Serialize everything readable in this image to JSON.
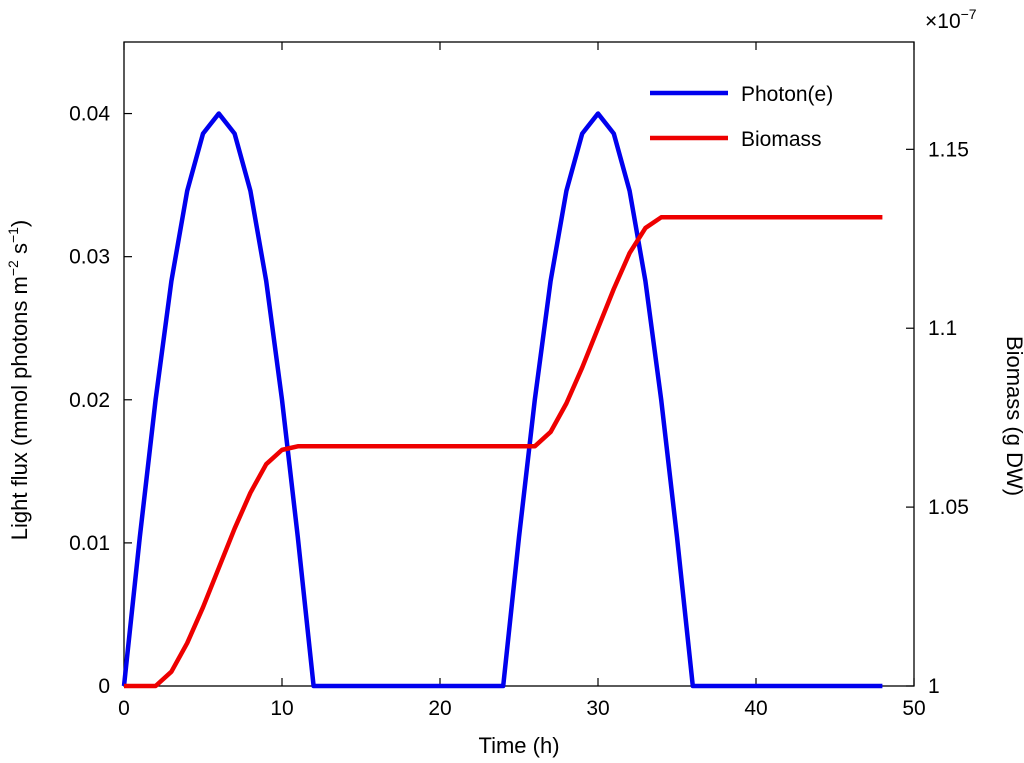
{
  "chart_data": {
    "type": "line",
    "xlabel": "Time (h)",
    "xlim": [
      0,
      50
    ],
    "xticks": [
      "0",
      "10",
      "20",
      "30",
      "40",
      "50"
    ],
    "y_left": {
      "label_main": "Light flux (mmol photons m",
      "label_sup1": "−2",
      "label_mid": " s",
      "label_sup2": "−1",
      "label_end": ")",
      "lim": [
        0,
        0.045
      ],
      "ticks": [
        0,
        0.01,
        0.02,
        0.03,
        0.04
      ],
      "tick_labels": [
        "0",
        "0.01",
        "0.02",
        "0.03",
        "0.04"
      ]
    },
    "y_right": {
      "label": "Biomass (g DW)",
      "lim": [
        1.0,
        1.18
      ],
      "ticks": [
        1.0,
        1.05,
        1.1,
        1.15
      ],
      "tick_labels": [
        "1",
        "1.05",
        "1.1",
        "1.15"
      ],
      "exponent_base": "×10",
      "exponent_power": "−7"
    },
    "series": [
      {
        "name": "Photon(e)",
        "axis": "left",
        "color": "#0000ee",
        "x": [
          0,
          1,
          2,
          3,
          4,
          5,
          6,
          7,
          8,
          9,
          10,
          11,
          12,
          13,
          14,
          15,
          16,
          17,
          18,
          19,
          20,
          21,
          22,
          23,
          24,
          25,
          26,
          27,
          28,
          29,
          30,
          31,
          32,
          33,
          34,
          35,
          36,
          37,
          38,
          39,
          40,
          41,
          42,
          43,
          44,
          45,
          46,
          47,
          48
        ],
        "y": [
          0,
          0.0104,
          0.02,
          0.0283,
          0.0346,
          0.0386,
          0.04,
          0.0386,
          0.0346,
          0.0283,
          0.02,
          0.0104,
          0,
          0,
          0,
          0,
          0,
          0,
          0,
          0,
          0,
          0,
          0,
          0,
          0,
          0.0104,
          0.02,
          0.0283,
          0.0346,
          0.0386,
          0.04,
          0.0386,
          0.0346,
          0.0283,
          0.02,
          0.0104,
          0,
          0,
          0,
          0,
          0,
          0,
          0,
          0,
          0,
          0,
          0,
          0,
          0
        ]
      },
      {
        "name": "Biomass",
        "axis": "right",
        "color": "#ee0000",
        "x": [
          0,
          1,
          2,
          3,
          4,
          5,
          6,
          7,
          8,
          9,
          10,
          11,
          12,
          13,
          14,
          15,
          16,
          17,
          18,
          19,
          20,
          21,
          22,
          23,
          24,
          25,
          26,
          27,
          28,
          29,
          30,
          31,
          32,
          33,
          34,
          35,
          36,
          37,
          38,
          39,
          40,
          41,
          42,
          43,
          44,
          45,
          46,
          47,
          48
        ],
        "y": [
          1.0,
          1.0,
          1.0,
          1.004,
          1.012,
          1.022,
          1.033,
          1.044,
          1.054,
          1.062,
          1.066,
          1.067,
          1.067,
          1.067,
          1.067,
          1.067,
          1.067,
          1.067,
          1.067,
          1.067,
          1.067,
          1.067,
          1.067,
          1.067,
          1.067,
          1.067,
          1.067,
          1.071,
          1.079,
          1.089,
          1.1,
          1.111,
          1.121,
          1.128,
          1.131,
          1.131,
          1.131,
          1.131,
          1.131,
          1.131,
          1.131,
          1.131,
          1.131,
          1.131,
          1.131,
          1.131,
          1.131,
          1.131,
          1.131
        ]
      }
    ],
    "legend_position": "top-right",
    "grid": false
  }
}
